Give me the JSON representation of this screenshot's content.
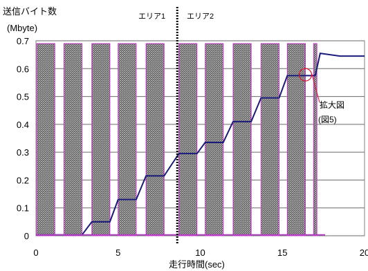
{
  "chart_data": {
    "type": "line",
    "title": "",
    "ylabel": "送信バイト数",
    "ylabel_unit": "(Mbyte)",
    "xlabel": "走行時間(sec)",
    "xlim": [
      0,
      20
    ],
    "ylim": [
      0,
      0.7
    ],
    "xticks": [
      0,
      5,
      10,
      15,
      20
    ],
    "yticks": [
      0,
      0.1,
      0.2,
      0.3,
      0.4,
      0.5,
      0.6,
      0.7
    ],
    "ytick_labels": [
      "0",
      "0.1",
      "0.2",
      "0.3",
      "0.4",
      "0.5",
      "0.6",
      "0.7"
    ],
    "xtick_labels": [
      "0",
      "5",
      "10",
      "15",
      "20"
    ],
    "grid": "horizontal",
    "legend": "none",
    "colors": {
      "series_line": "#1a1a7a",
      "baseline_line": "#b03fc0",
      "bar_edge": "#cc33cc",
      "bar_fill": "hatched gray",
      "divider": "#000000",
      "annotation_circle": "#e0102a"
    },
    "shaded_bars": [
      {
        "x_start": 0.05,
        "x_end": 1.15
      },
      {
        "x_start": 1.7,
        "x_end": 2.8
      },
      {
        "x_start": 3.4,
        "x_end": 4.5
      },
      {
        "x_start": 5.0,
        "x_end": 6.1
      },
      {
        "x_start": 6.7,
        "x_end": 7.8
      },
      {
        "x_start": 8.7,
        "x_end": 9.8
      },
      {
        "x_start": 10.3,
        "x_end": 11.4
      },
      {
        "x_start": 12.0,
        "x_end": 13.1
      },
      {
        "x_start": 13.7,
        "x_end": 14.8
      },
      {
        "x_start": 15.3,
        "x_end": 16.4
      },
      {
        "x_start": 16.9,
        "x_end": 17.1
      }
    ],
    "shaded_bar_height": 0.69,
    "series": [
      {
        "x": [
          0,
          1.15,
          1.7,
          2.8,
          3.4,
          4.5,
          5.0,
          6.1,
          6.7,
          7.8,
          8.7,
          9.8,
          10.3,
          11.4,
          12.0,
          13.1,
          13.7,
          14.8,
          15.3,
          16.4,
          17.0,
          17.3,
          18.5,
          20.0
        ],
        "y": [
          0.003,
          0.003,
          0.003,
          0.003,
          0.05,
          0.05,
          0.13,
          0.13,
          0.215,
          0.215,
          0.295,
          0.295,
          0.335,
          0.335,
          0.41,
          0.41,
          0.495,
          0.495,
          0.575,
          0.575,
          0.575,
          0.655,
          0.645,
          0.645
        ]
      },
      {
        "x": [
          0,
          17.6
        ],
        "y": [
          0.003,
          0.003
        ]
      }
    ],
    "divider_x": 8.6,
    "area_labels": [
      "エリア1",
      "エリア2"
    ],
    "annotation": {
      "text_line1": "拡大図",
      "text_line2": "(図5)",
      "circle_center": [
        16.4,
        0.578
      ]
    }
  }
}
